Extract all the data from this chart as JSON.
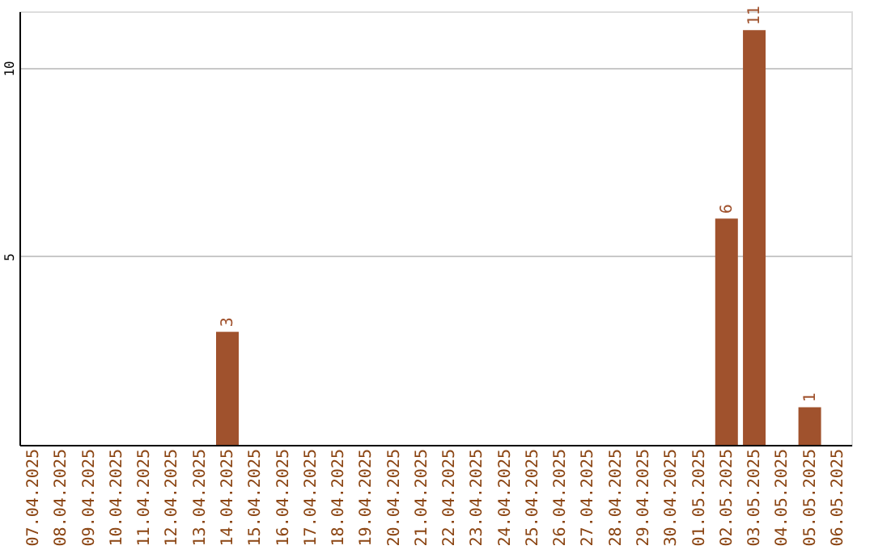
{
  "chart_data": {
    "type": "bar",
    "categories": [
      "07.04.2025",
      "08.04.2025",
      "09.04.2025",
      "10.04.2025",
      "11.04.2025",
      "12.04.2025",
      "13.04.2025",
      "14.04.2025",
      "15.04.2025",
      "16.04.2025",
      "17.04.2025",
      "18.04.2025",
      "19.04.2025",
      "20.04.2025",
      "21.04.2025",
      "22.04.2025",
      "23.04.2025",
      "24.04.2025",
      "25.04.2025",
      "26.04.2025",
      "27.04.2025",
      "28.04.2025",
      "29.04.2025",
      "30.04.2025",
      "01.05.2025",
      "02.05.2025",
      "03.05.2025",
      "04.05.2025",
      "05.05.2025",
      "06.05.2025"
    ],
    "values": [
      0,
      0,
      0,
      0,
      0,
      0,
      0,
      3,
      0,
      0,
      0,
      0,
      0,
      0,
      0,
      0,
      0,
      0,
      0,
      0,
      0,
      0,
      0,
      0,
      0,
      6,
      11,
      0,
      1,
      0
    ],
    "value_labels": [
      null,
      null,
      null,
      null,
      null,
      null,
      null,
      "3",
      null,
      null,
      null,
      null,
      null,
      null,
      null,
      null,
      null,
      null,
      null,
      null,
      null,
      null,
      null,
      null,
      null,
      "6",
      "11",
      null,
      "1",
      null
    ],
    "color": "#a0522d",
    "ylim": [
      0,
      11.5
    ],
    "yticks": [
      5,
      10
    ],
    "grid": "y"
  }
}
